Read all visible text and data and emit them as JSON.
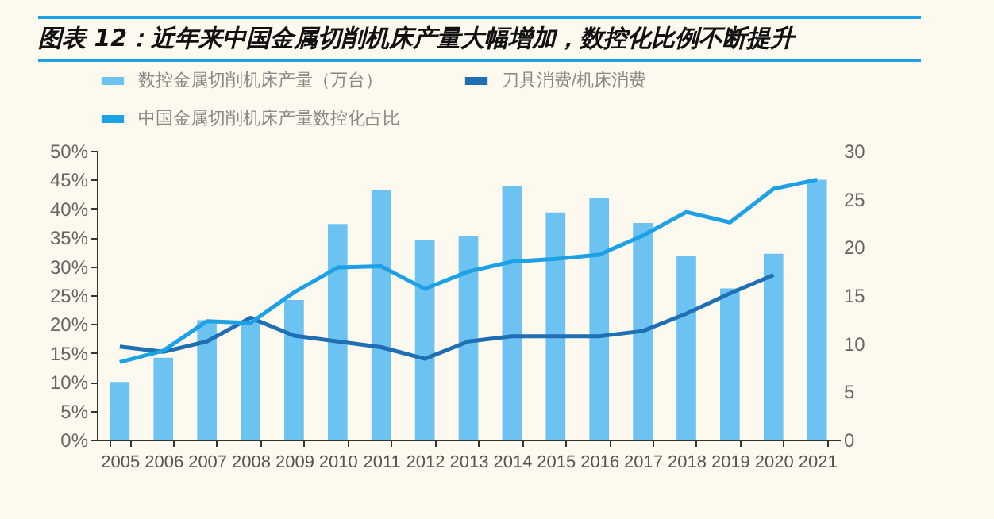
{
  "chart_data": {
    "type": "bar",
    "title": "图表 12：近年来中国金属切削机床产量大幅增加，数控化比例不断提升",
    "categories": [
      "2005",
      "2006",
      "2007",
      "2008",
      "2009",
      "2010",
      "2011",
      "2012",
      "2013",
      "2014",
      "2015",
      "2016",
      "2017",
      "2018",
      "2019",
      "2020",
      "2021"
    ],
    "series": [
      {
        "name": "数控金属切削机床产量（万台）",
        "axis": "y2",
        "color": "#6cc3f2",
        "values": [
          6.0,
          8.5,
          12.4,
          12.3,
          14.5,
          22.4,
          25.9,
          20.7,
          21.1,
          26.3,
          23.6,
          25.1,
          22.5,
          19.1,
          15.7,
          19.3,
          27.0
        ]
      },
      {
        "name": "刀具消费/机床消费",
        "type": "line",
        "color": "#1f6fb5",
        "values": [
          16.1,
          15.2,
          17.0,
          21.1,
          18.0,
          17.0,
          16.0,
          14.0,
          17.0,
          17.9,
          17.9,
          17.9,
          18.8,
          21.8,
          25.3,
          28.5,
          null
        ]
      },
      {
        "name": "中国金属切削机床产量数控化占比",
        "type": "line",
        "color": "#1ca0e6",
        "values": [
          13.4,
          15.4,
          20.5,
          20.2,
          25.5,
          29.8,
          30.0,
          26.1,
          29.1,
          30.8,
          31.3,
          32.0,
          35.3,
          39.4,
          37.6,
          43.4,
          45.0
        ]
      }
    ],
    "ylim": [
      0,
      50
    ],
    "yticks": [
      {
        "value": 0,
        "label": "0%"
      },
      {
        "value": 5,
        "label": "5%"
      },
      {
        "value": 10,
        "label": "10%"
      },
      {
        "value": 15,
        "label": "15%"
      },
      {
        "value": 20,
        "label": "20%"
      },
      {
        "value": 25,
        "label": "25%"
      },
      {
        "value": 30,
        "label": "30%"
      },
      {
        "value": 35,
        "label": "35%"
      },
      {
        "value": 40,
        "label": "40%"
      },
      {
        "value": 45,
        "label": "45%"
      },
      {
        "value": 50,
        "label": "50%"
      }
    ],
    "y2lim": [
      0,
      30
    ],
    "y2ticks": [
      0,
      5,
      10,
      15,
      20,
      25,
      30
    ],
    "legend": "top",
    "grid": false
  }
}
